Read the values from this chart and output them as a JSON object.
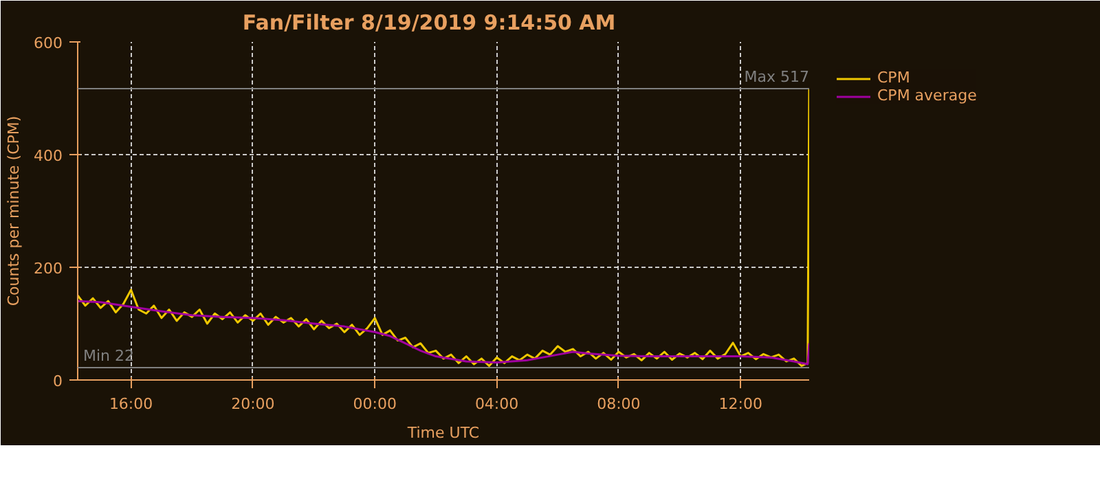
{
  "chart_data": {
    "type": "line",
    "title": "Fan/Filter     8/19/2019 9:14:50 AM",
    "xlabel": "Time UTC",
    "ylabel": "Counts per minute (CPM)",
    "xlim": [
      "2019-08-18T14:15",
      "2019-08-19T14:15"
    ],
    "ylim": [
      0,
      600
    ],
    "xticks": [
      {
        "value": "2019-08-18T16:00",
        "label": "16:00"
      },
      {
        "value": "2019-08-18T20:00",
        "label": "20:00"
      },
      {
        "value": "2019-08-19T00:00",
        "label": "00:00"
      },
      {
        "value": "2019-08-19T04:00",
        "label": "04:00"
      },
      {
        "value": "2019-08-19T08:00",
        "label": "08:00"
      },
      {
        "value": "2019-08-19T12:00",
        "label": "12:00"
      }
    ],
    "yticks": [
      0,
      200,
      400,
      600
    ],
    "grid": true,
    "legend": "top right",
    "ref_lines": [
      {
        "axis": "y",
        "value": 517,
        "label": "Max 517",
        "color": "#808080"
      },
      {
        "axis": "y",
        "value": 22,
        "label": "Min 22",
        "color": "#808080"
      }
    ],
    "series": [
      {
        "name": "CPM",
        "color": "#f0c800",
        "x": [
          "2019-08-18T14:15",
          "2019-08-18T14:30",
          "2019-08-18T14:45",
          "2019-08-18T15:00",
          "2019-08-18T15:15",
          "2019-08-18T15:30",
          "2019-08-18T15:45",
          "2019-08-18T16:00",
          "2019-08-18T16:15",
          "2019-08-18T16:30",
          "2019-08-18T16:45",
          "2019-08-18T17:00",
          "2019-08-18T17:15",
          "2019-08-18T17:30",
          "2019-08-18T17:45",
          "2019-08-18T18:00",
          "2019-08-18T18:15",
          "2019-08-18T18:30",
          "2019-08-18T18:45",
          "2019-08-18T19:00",
          "2019-08-18T19:15",
          "2019-08-18T19:30",
          "2019-08-18T19:45",
          "2019-08-18T20:00",
          "2019-08-18T20:15",
          "2019-08-18T20:30",
          "2019-08-18T20:45",
          "2019-08-18T21:00",
          "2019-08-18T21:15",
          "2019-08-18T21:30",
          "2019-08-18T21:45",
          "2019-08-18T22:00",
          "2019-08-18T22:15",
          "2019-08-18T22:30",
          "2019-08-18T22:45",
          "2019-08-18T23:00",
          "2019-08-18T23:15",
          "2019-08-18T23:30",
          "2019-08-18T23:45",
          "2019-08-19T00:00",
          "2019-08-19T00:15",
          "2019-08-19T00:30",
          "2019-08-19T00:45",
          "2019-08-19T01:00",
          "2019-08-19T01:15",
          "2019-08-19T01:30",
          "2019-08-19T01:45",
          "2019-08-19T02:00",
          "2019-08-19T02:15",
          "2019-08-19T02:30",
          "2019-08-19T02:45",
          "2019-08-19T03:00",
          "2019-08-19T03:15",
          "2019-08-19T03:30",
          "2019-08-19T03:45",
          "2019-08-19T04:00",
          "2019-08-19T04:15",
          "2019-08-19T04:30",
          "2019-08-19T04:45",
          "2019-08-19T05:00",
          "2019-08-19T05:15",
          "2019-08-19T05:30",
          "2019-08-19T05:45",
          "2019-08-19T06:00",
          "2019-08-19T06:15",
          "2019-08-19T06:30",
          "2019-08-19T06:45",
          "2019-08-19T07:00",
          "2019-08-19T07:15",
          "2019-08-19T07:30",
          "2019-08-19T07:45",
          "2019-08-19T08:00",
          "2019-08-19T08:15",
          "2019-08-19T08:30",
          "2019-08-19T08:45",
          "2019-08-19T09:00",
          "2019-08-19T09:15",
          "2019-08-19T09:30",
          "2019-08-19T09:45",
          "2019-08-19T10:00",
          "2019-08-19T10:15",
          "2019-08-19T10:30",
          "2019-08-19T10:45",
          "2019-08-19T11:00",
          "2019-08-19T11:15",
          "2019-08-19T11:30",
          "2019-08-19T11:45",
          "2019-08-19T12:00",
          "2019-08-19T12:15",
          "2019-08-19T12:30",
          "2019-08-19T12:45",
          "2019-08-19T13:00",
          "2019-08-19T13:15",
          "2019-08-19T13:30",
          "2019-08-19T13:45",
          "2019-08-19T14:00",
          "2019-08-19T14:12",
          "2019-08-19T14:15"
        ],
        "values": [
          150,
          132,
          145,
          128,
          140,
          120,
          135,
          160,
          125,
          118,
          132,
          110,
          125,
          105,
          120,
          112,
          125,
          100,
          118,
          108,
          120,
          102,
          115,
          105,
          118,
          98,
          112,
          102,
          110,
          95,
          108,
          90,
          105,
          92,
          100,
          85,
          98,
          80,
          92,
          110,
          80,
          88,
          70,
          75,
          58,
          65,
          48,
          52,
          38,
          45,
          30,
          42,
          28,
          38,
          25,
          40,
          30,
          42,
          35,
          45,
          38,
          52,
          45,
          60,
          50,
          55,
          42,
          50,
          38,
          48,
          36,
          50,
          40,
          46,
          35,
          48,
          38,
          50,
          36,
          47,
          40,
          48,
          37,
          52,
          38,
          46,
          66,
          42,
          48,
          37,
          46,
          40,
          45,
          33,
          38,
          25,
          30,
          517
        ]
      },
      {
        "name": "CPM average",
        "color": "#a000a0",
        "x": [
          "2019-08-18T14:15",
          "2019-08-18T15:00",
          "2019-08-18T16:00",
          "2019-08-18T17:00",
          "2019-08-18T18:00",
          "2019-08-18T19:00",
          "2019-08-18T20:00",
          "2019-08-18T21:00",
          "2019-08-18T22:00",
          "2019-08-18T23:00",
          "2019-08-19T00:00",
          "2019-08-19T00:30",
          "2019-08-19T01:00",
          "2019-08-19T01:30",
          "2019-08-19T02:00",
          "2019-08-19T03:00",
          "2019-08-19T04:00",
          "2019-08-19T05:00",
          "2019-08-19T06:00",
          "2019-08-19T06:30",
          "2019-08-19T07:00",
          "2019-08-19T08:00",
          "2019-08-19T09:00",
          "2019-08-19T10:00",
          "2019-08-19T11:00",
          "2019-08-19T12:00",
          "2019-08-19T13:00",
          "2019-08-19T13:45",
          "2019-08-19T14:12",
          "2019-08-19T14:15"
        ],
        "values": [
          140,
          138,
          130,
          122,
          115,
          112,
          110,
          106,
          100,
          95,
          85,
          78,
          65,
          52,
          42,
          33,
          31,
          35,
          45,
          50,
          47,
          43,
          42,
          42,
          42,
          42,
          40,
          33,
          28,
          65
        ]
      }
    ]
  }
}
